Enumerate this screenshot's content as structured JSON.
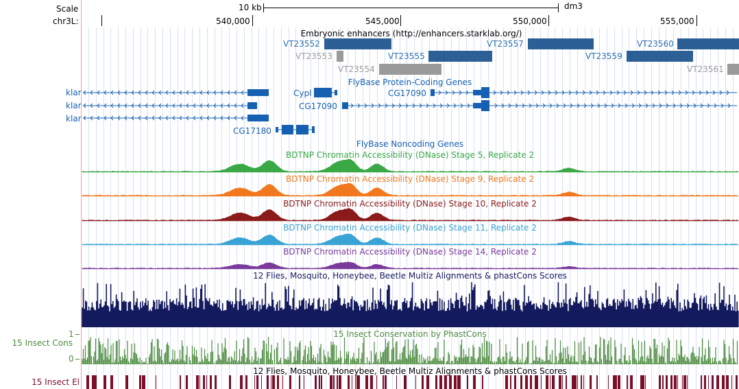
{
  "header": {
    "scale_label": "Scale",
    "scale_value": "10 kb",
    "assembly": "dm3",
    "chrom_label": "chr3L:",
    "positions": [
      "540,000",
      "545,000",
      "550,000",
      "555,000"
    ]
  },
  "tracks": {
    "enhancers": {
      "title": "Embryonic enhancers (http://enhancers.starklab.org/)",
      "items": [
        "VT23552",
        "VT23553",
        "VT23554",
        "VT23555",
        "VT23557",
        "VT23559",
        "VT23560",
        "VT23561"
      ]
    },
    "coding_genes": {
      "title": "FlyBase Protein-Coding Genes",
      "items": [
        "klar",
        "klar",
        "klar",
        "CG17180",
        "Cypl",
        "CG17090",
        "CG17090"
      ]
    },
    "noncoding_genes": {
      "title": "FlyBase Noncoding Genes"
    },
    "dnase": [
      {
        "title": "BDTNP Chromatin Accessibility (DNase) Stage 5, Replicate 2",
        "color": "#39a845"
      },
      {
        "title": "BDTNP Chromatin Accessibility (DNase) Stage 9, Replicate 2",
        "color": "#f2781f"
      },
      {
        "title": "BDTNP Chromatin Accessibility (DNase) Stage 10, Replicate 2",
        "color": "#8b1a1a"
      },
      {
        "title": "BDTNP Chromatin Accessibility (DNase) Stage 11, Replicate 2",
        "color": "#39a3d6"
      },
      {
        "title": "BDTNP Chromatin Accessibility (DNase) Stage 14, Replicate 2",
        "color": "#7a3a9c"
      }
    ],
    "multiz": {
      "title": "12 Flies, Mosquito, Honeybee, Beetle Multiz Alignments & phastCons Scores",
      "color": "#141a5e"
    },
    "phastcons": {
      "side_label": "15 Insect Cons",
      "title": "15 Insect Conservation by PhastCons",
      "axis_top": "1",
      "axis_bottom": "0",
      "color": "#4a8a3c"
    },
    "elements": {
      "side_label": "15 Insect El",
      "title": "12 Flies, Mosquito, Honeybee, Beetle Multiz Alignments & phastCons Scores",
      "color": "#7a0f2a"
    }
  },
  "colors": {
    "gene_blue": "#1560b0",
    "enhancer_blue": "#2c5f96",
    "enhancer_gray": "#9a9a9a"
  }
}
